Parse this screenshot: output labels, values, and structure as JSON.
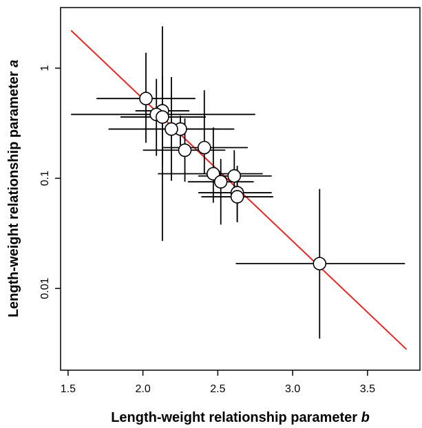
{
  "chart_data": {
    "type": "scatter",
    "title": "",
    "xlabel": "Length-weight relationship parameter",
    "xlabel_italic": "b",
    "ylabel": "Length-weight relationship parameter",
    "ylabel_italic": "a",
    "xlim": [
      1.45,
      3.85
    ],
    "ylim": [
      0.00181,
      3.55
    ],
    "yscale": "log",
    "grid": false,
    "xticks": [
      {
        "value": 1.5,
        "label": "1.5"
      },
      {
        "value": 2.0,
        "label": "2.0"
      },
      {
        "value": 2.5,
        "label": "2.5"
      },
      {
        "value": 3.0,
        "label": "3.0"
      },
      {
        "value": 3.5,
        "label": "3.5"
      }
    ],
    "yticks": [
      {
        "value": 1,
        "label": "1"
      },
      {
        "value": 0.1,
        "label": "0.1"
      },
      {
        "value": 0.01,
        "label": "0.01"
      }
    ],
    "regression_line": {
      "color": "#e8251f",
      "points": [
        {
          "x": 1.52,
          "y": 2.2
        },
        {
          "x": 3.76,
          "y": 0.0028
        }
      ]
    },
    "marker": {
      "fill": "#ffffff",
      "stroke": "#000000"
    },
    "points": [
      {
        "x": 2.02,
        "y": 0.53,
        "xerr": [
          1.69,
          2.35
        ],
        "yerr": [
          0.21,
          1.38
        ]
      },
      {
        "x": 2.13,
        "y": 0.41,
        "xerr": [
          1.95,
          2.31
        ],
        "yerr": [
          0.13,
          2.4
        ]
      },
      {
        "x": 2.09,
        "y": 0.38,
        "xerr": [
          1.52,
          2.75
        ],
        "yerr": [
          0.16,
          0.8
        ]
      },
      {
        "x": 2.13,
        "y": 0.36,
        "xerr": [
          1.85,
          2.42
        ],
        "yerr": [
          0.027,
          0.85
        ]
      },
      {
        "x": 2.25,
        "y": 0.28,
        "xerr": [
          2.0,
          2.5
        ],
        "yerr": [
          0.2,
          0.37
        ]
      },
      {
        "x": 2.19,
        "y": 0.28,
        "xerr": [
          1.77,
          2.61
        ],
        "yerr": [
          0.095,
          0.83
        ]
      },
      {
        "x": 2.28,
        "y": 0.18,
        "xerr": [
          2.0,
          2.55
        ],
        "yerr": [
          0.093,
          0.35
        ]
      },
      {
        "x": 2.41,
        "y": 0.19,
        "xerr": [
          2.13,
          2.7
        ],
        "yerr": [
          0.11,
          0.63
        ]
      },
      {
        "x": 2.47,
        "y": 0.11,
        "xerr": [
          2.1,
          2.8
        ],
        "yerr": [
          0.06,
          0.29
        ]
      },
      {
        "x": 2.61,
        "y": 0.105,
        "xerr": [
          2.37,
          2.86
        ],
        "yerr": [
          0.06,
          0.18
        ]
      },
      {
        "x": 2.52,
        "y": 0.093,
        "xerr": [
          2.3,
          2.74
        ],
        "yerr": [
          0.038,
          0.15
        ]
      },
      {
        "x": 2.63,
        "y": 0.074,
        "xerr": [
          2.37,
          2.86
        ],
        "yerr": [
          0.04,
          0.13
        ]
      },
      {
        "x": 2.63,
        "y": 0.068,
        "xerr": [
          2.39,
          2.87
        ],
        "yerr": [
          0.04,
          0.11
        ]
      },
      {
        "x": 3.18,
        "y": 0.0168,
        "xerr": [
          2.62,
          3.75
        ],
        "yerr": [
          0.0035,
          0.08
        ]
      }
    ]
  }
}
